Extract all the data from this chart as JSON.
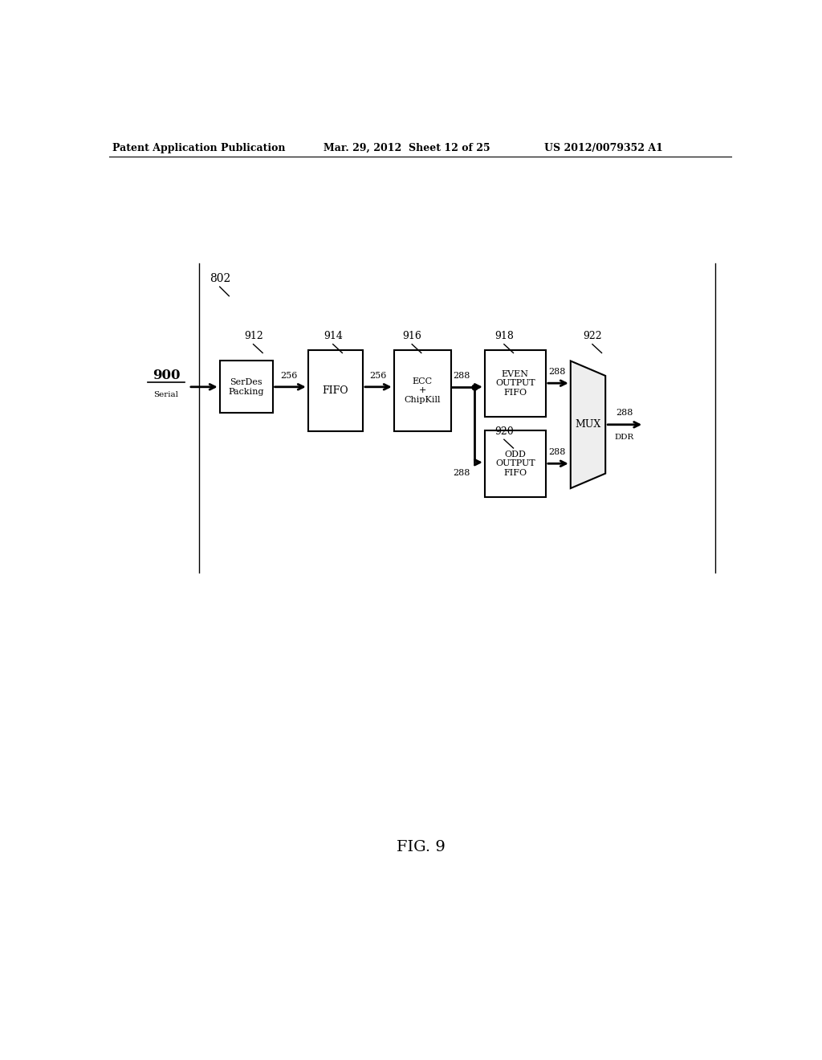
{
  "bg_color": "#ffffff",
  "header_left": "Patent Application Publication",
  "header_mid": "Mar. 29, 2012  Sheet 12 of 25",
  "header_right": "US 2012/0079352 A1",
  "fig_label": "FIG. 9",
  "boundary_label": "802",
  "label_900": "900",
  "label_serial": "Serial",
  "label_912": "912",
  "label_serdes": "SerDes\nPacking",
  "label_256a": "256",
  "label_914": "914",
  "label_fifo": "FIFO",
  "label_256b": "256",
  "label_916": "916",
  "label_ecc": "ECC\n+\nChipKill",
  "label_288a": "288",
  "label_918": "918",
  "label_even": "EVEN\nOUTPUT\nFIFO",
  "label_288b": "288",
  "label_920": "920",
  "label_odd": "ODD\nOUTPUT\nFIFO",
  "label_288c": "288",
  "label_922": "922",
  "label_mux": "MUX",
  "label_288d": "288",
  "label_ddr": "DDR",
  "label_288e": "288"
}
